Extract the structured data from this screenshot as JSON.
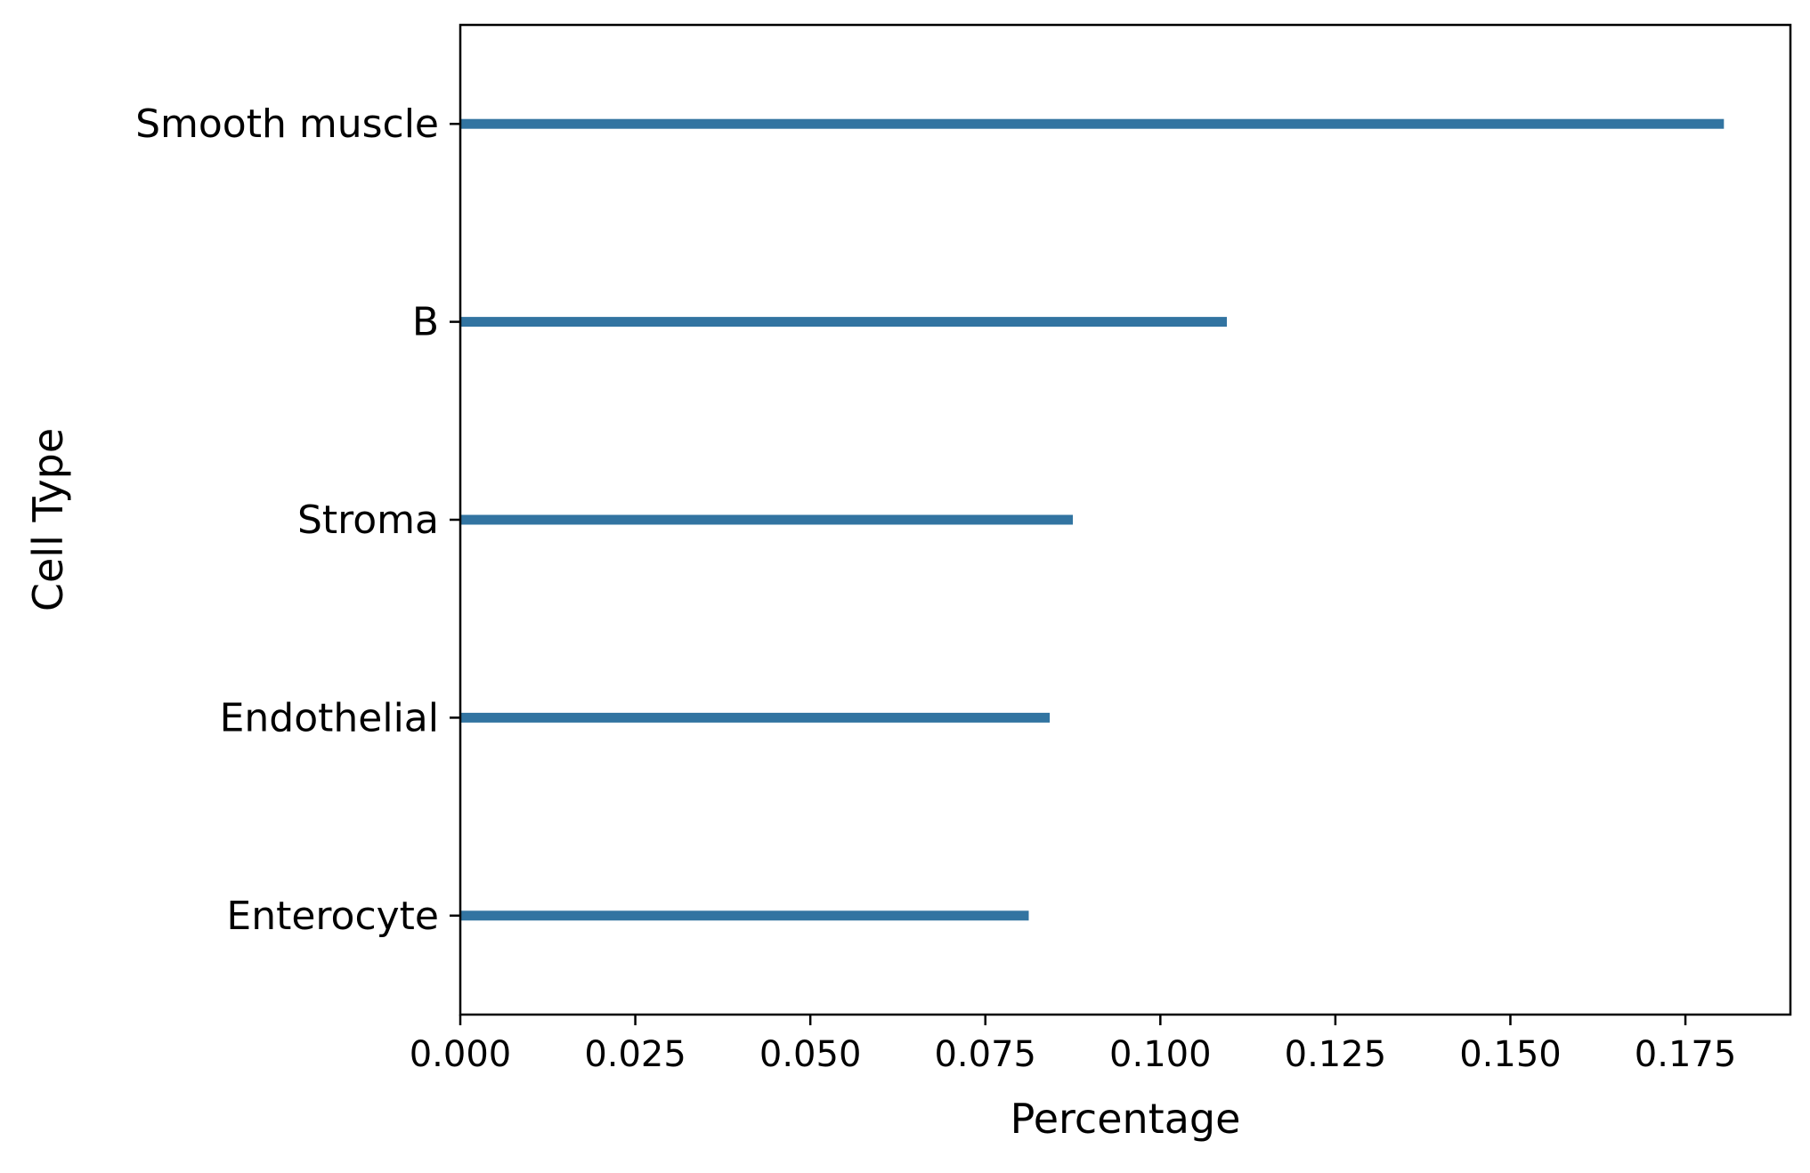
{
  "chart_data": {
    "type": "bar",
    "orientation": "horizontal",
    "title": "",
    "xlabel": "Percentage",
    "ylabel": "Cell Type",
    "categories": [
      "Smooth muscle",
      "B",
      "Stroma",
      "Endothelial",
      "Enterocyte"
    ],
    "values": [
      0.1805,
      0.1095,
      0.0875,
      0.0842,
      0.0812
    ],
    "xlim": [
      0,
      0.19
    ],
    "xticks": [
      0.0,
      0.025,
      0.05,
      0.075,
      0.1,
      0.125,
      0.15,
      0.175
    ],
    "xtick_labels": [
      "0.000",
      "0.025",
      "0.050",
      "0.075",
      "0.100",
      "0.125",
      "0.150",
      "0.175"
    ],
    "grid": false,
    "colors": {
      "bar": "#3274a1",
      "axis": "#000000"
    }
  }
}
